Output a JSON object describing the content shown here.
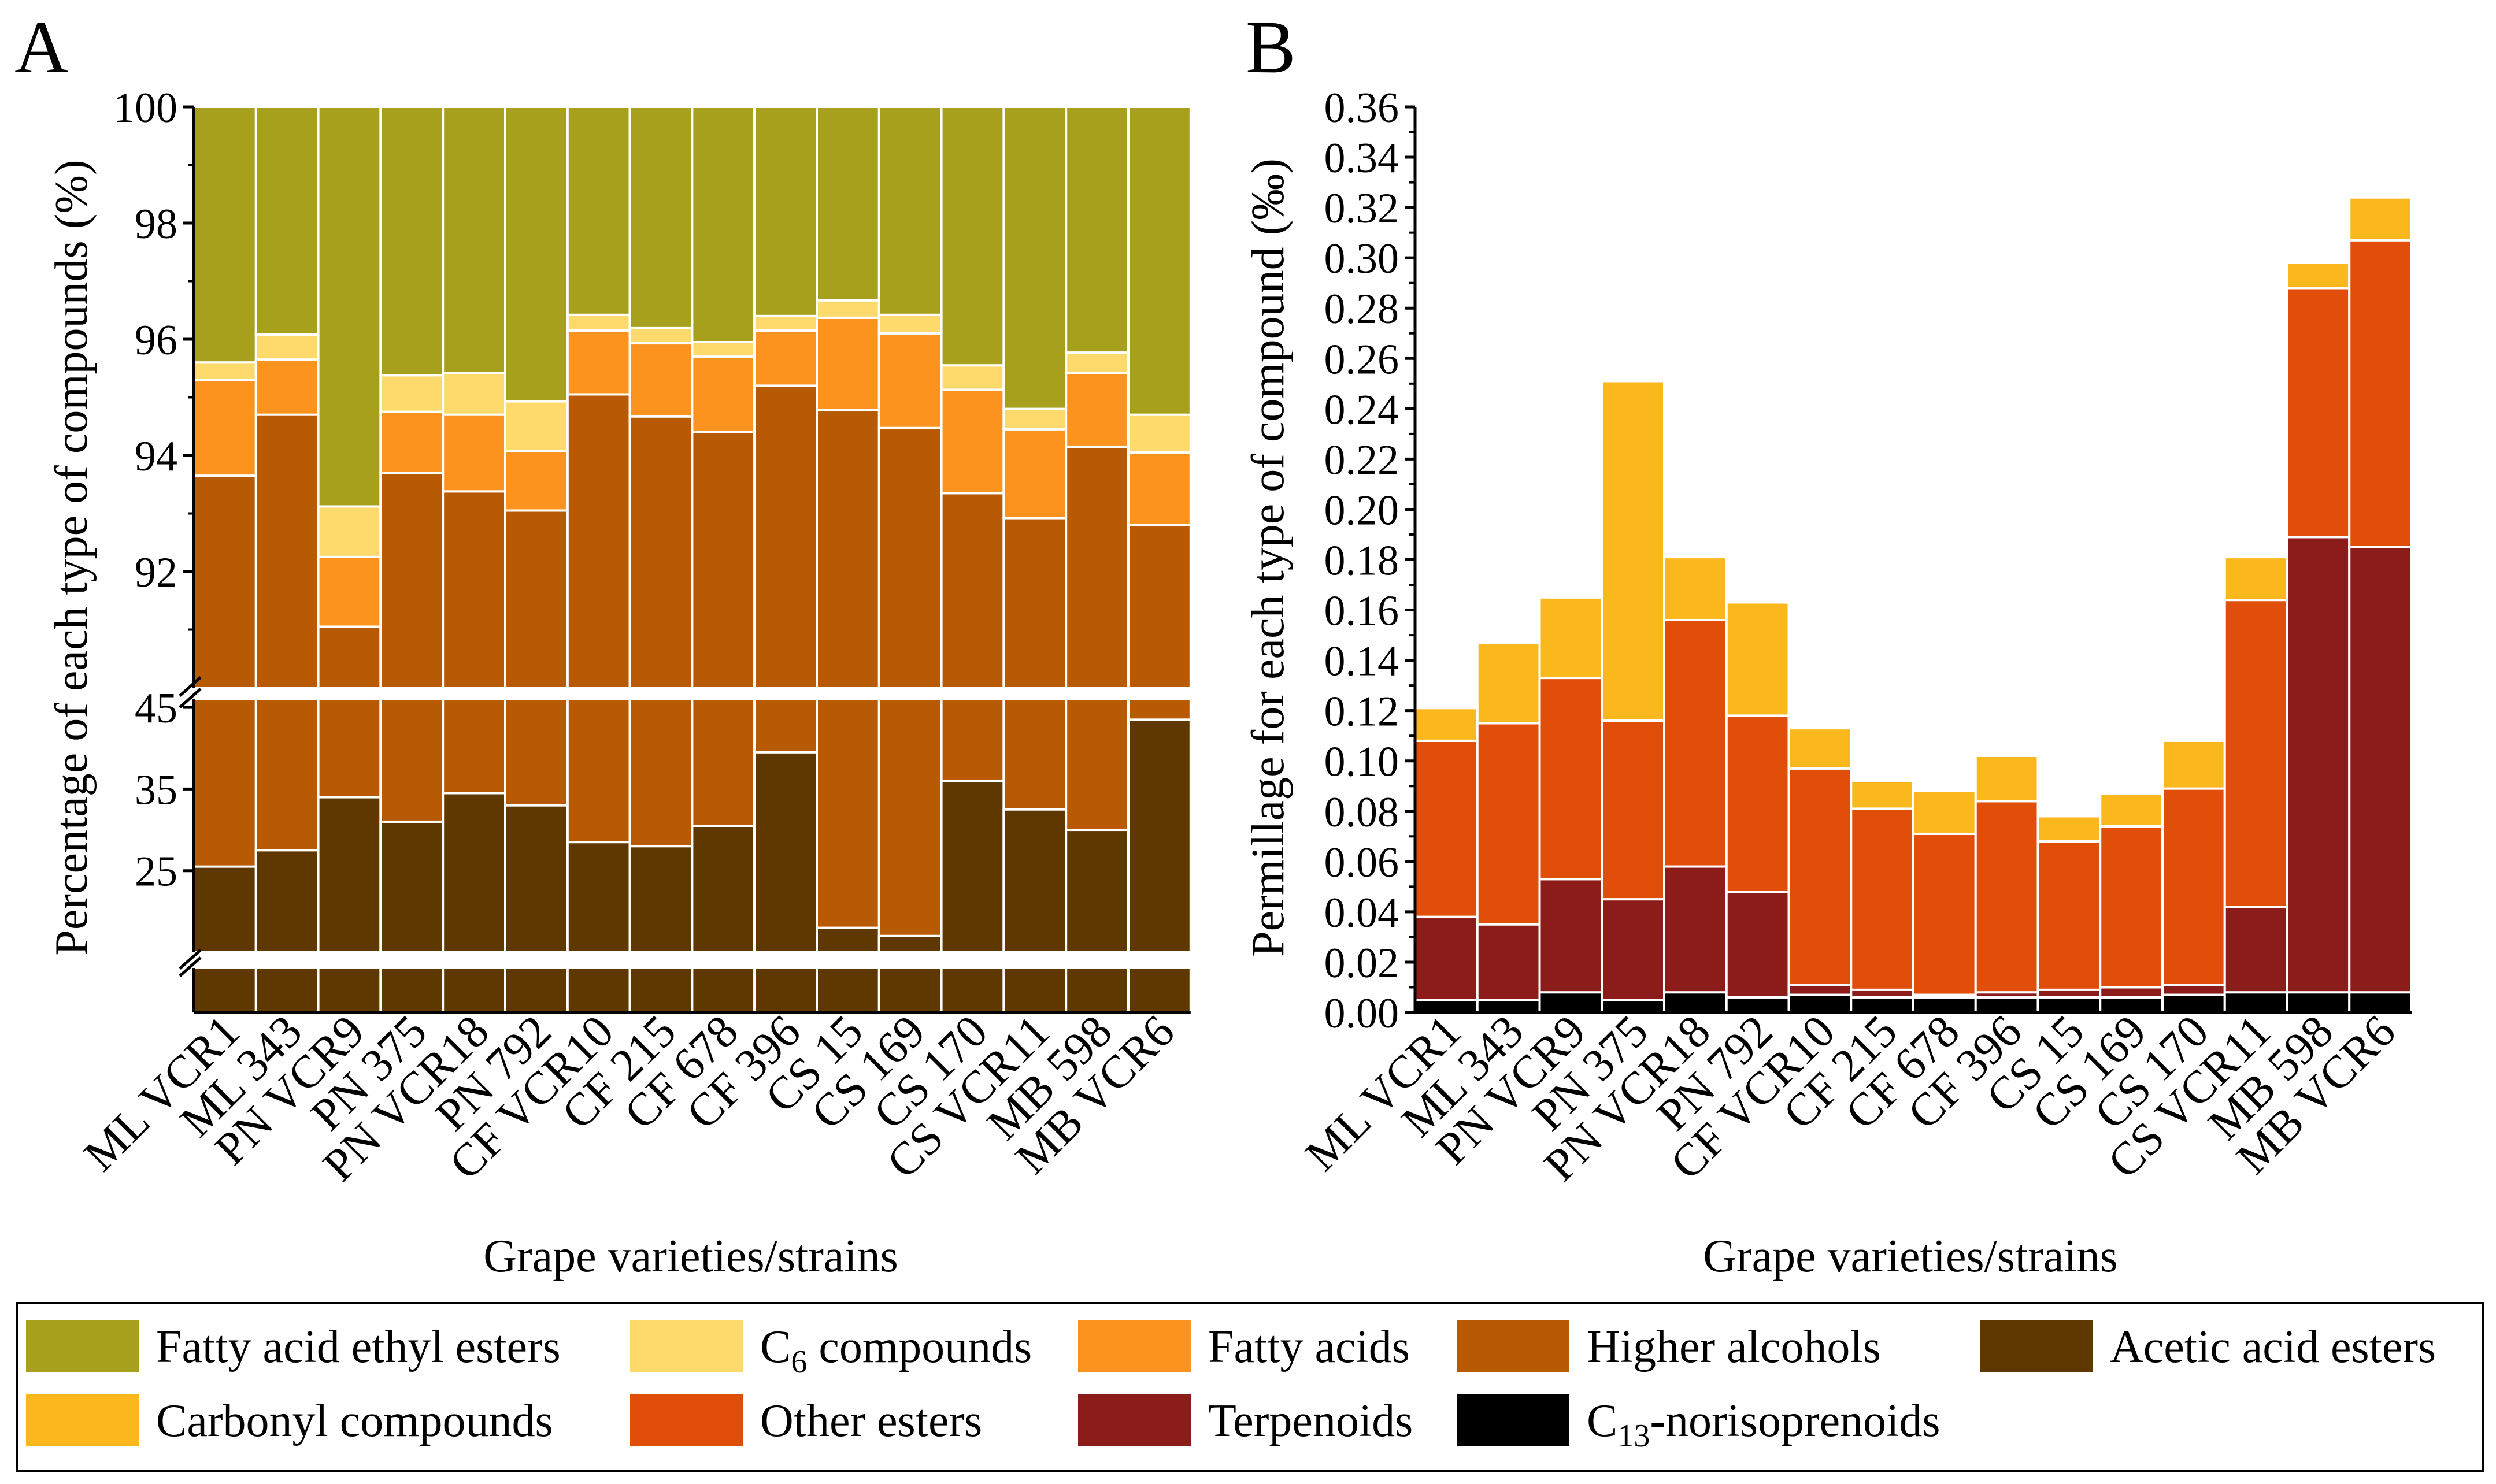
{
  "figure": {
    "legend": {
      "items": [
        {
          "label": "Fatty acid ethyl esters",
          "color": "#A6A01C"
        },
        {
          "label_pre": "C",
          "label_sub": "6",
          "label_post": " compounds",
          "color": "#FDDA6B"
        },
        {
          "label": "Fatty acids",
          "color": "#FC931E"
        },
        {
          "label": "Higher alcohols",
          "color": "#B85903"
        },
        {
          "label": "Acetic acid esters",
          "color": "#5F3800"
        },
        {
          "label": "Carbonyl compounds",
          "color": "#FBB81D"
        },
        {
          "label": "Other esters",
          "color": "#E04E0A"
        },
        {
          "label": "Terpenoids",
          "color": "#8B1C1A"
        },
        {
          "label_pre": "C",
          "label_sub": "13",
          "label_post": "-norisoprenoids",
          "color": "#000000"
        }
      ]
    }
  },
  "chart_data": [
    {
      "panel": "A",
      "type": "bar",
      "stacked": true,
      "broken_axis": true,
      "xlabel": "Grape varieties/strains",
      "ylabel": "Percentage of each type of compounds (%)",
      "categories": [
        "ML VCR1",
        "ML 343",
        "PN VCR9",
        "PN 375",
        "PN VCR18",
        "PN 792",
        "CF VCR10",
        "CF 215",
        "CF 678",
        "CF 396",
        "CS 15",
        "CS 169",
        "CS 170",
        "CS VCR11",
        "MB 598",
        "MB VCR6"
      ],
      "upper_ylim": [
        90,
        100
      ],
      "upper_ticks": [
        "100",
        "98",
        "96",
        "94",
        "92"
      ],
      "lower_ylim": [
        15,
        46
      ],
      "lower_ticks": [
        "45",
        "35",
        "25"
      ],
      "series": [
        {
          "name": "Acetic acid esters",
          "color": "#5F3800",
          "values": [
            25.5,
            27.5,
            34,
            31,
            34.5,
            33,
            28.5,
            28,
            30.5,
            39.5,
            18,
            17,
            36,
            32.5,
            30,
            43.5
          ]
        },
        {
          "name": "Higher alcohols",
          "color": "#B85903",
          "upper_bounds": [
            93.65,
            94.7,
            91.05,
            93.7,
            93.38,
            93.05,
            95.05,
            94.67,
            94.4,
            95.2,
            94.78,
            94.47,
            93.35,
            92.92,
            94.15,
            92.8
          ]
        },
        {
          "name": "Fatty acids",
          "color": "#FC931E",
          "upper_bounds": [
            95.3,
            95.65,
            92.25,
            94.75,
            94.7,
            94.07,
            96.15,
            95.93,
            95.7,
            96.15,
            96.37,
            96.1,
            95.13,
            94.45,
            95.42,
            94.05
          ]
        },
        {
          "name": "C6 compounds",
          "color": "#FDDA6B",
          "upper_bounds": [
            95.6,
            96.08,
            93.12,
            95.38,
            95.42,
            94.93,
            96.42,
            96.2,
            95.95,
            96.4,
            96.67,
            96.42,
            95.55,
            94.8,
            95.77,
            94.7
          ]
        },
        {
          "name": "Fatty acid ethyl esters",
          "color": "#A6A01C",
          "upper_bounds": [
            100,
            100,
            100,
            100,
            100,
            100,
            100,
            100,
            100,
            100,
            100,
            100,
            100,
            100,
            100,
            100
          ]
        }
      ]
    },
    {
      "panel": "B",
      "type": "bar",
      "stacked": true,
      "xlabel": "Grape varieties/strains",
      "ylabel": "Permillage for each type of compound (‰)",
      "categories": [
        "ML VCR1",
        "ML 343",
        "PN VCR9",
        "PN 375",
        "PN VCR18",
        "PN 792",
        "CF VCR10",
        "CF 215",
        "CF 678",
        "CF 396",
        "CS 15",
        "CS 169",
        "CS 170",
        "CS VCR11",
        "MB 598",
        "MB VCR6"
      ],
      "ylim": [
        0,
        0.36
      ],
      "ticks": [
        "0.00",
        "0.02",
        "0.04",
        "0.06",
        "0.08",
        "0.10",
        "0.12",
        "0.14",
        "0.16",
        "0.18",
        "0.20",
        "0.22",
        "0.24",
        "0.26",
        "0.28",
        "0.30",
        "0.32",
        "0.34",
        "0.36"
      ],
      "series": [
        {
          "name": "C13-norisoprenoids",
          "color": "#000000",
          "values": [
            0.005,
            0.005,
            0.008,
            0.005,
            0.008,
            0.006,
            0.007,
            0.006,
            0.006,
            0.006,
            0.006,
            0.006,
            0.007,
            0.008,
            0.008,
            0.008
          ]
        },
        {
          "name": "Terpenoids",
          "color": "#8B1C1A",
          "values": [
            0.033,
            0.03,
            0.045,
            0.04,
            0.05,
            0.042,
            0.004,
            0.003,
            0.001,
            0.002,
            0.003,
            0.004,
            0.004,
            0.034,
            0.181,
            0.177
          ]
        },
        {
          "name": "Other esters",
          "color": "#E04E0A",
          "values": [
            0.07,
            0.08,
            0.08,
            0.071,
            0.098,
            0.07,
            0.086,
            0.072,
            0.064,
            0.076,
            0.059,
            0.064,
            0.078,
            0.122,
            0.099,
            0.122
          ]
        },
        {
          "name": "Carbonyl compounds",
          "color": "#FBB81D",
          "values": [
            0.013,
            0.032,
            0.032,
            0.135,
            0.025,
            0.045,
            0.016,
            0.011,
            0.017,
            0.018,
            0.01,
            0.013,
            0.019,
            0.017,
            0.01,
            0.017
          ]
        }
      ]
    }
  ]
}
